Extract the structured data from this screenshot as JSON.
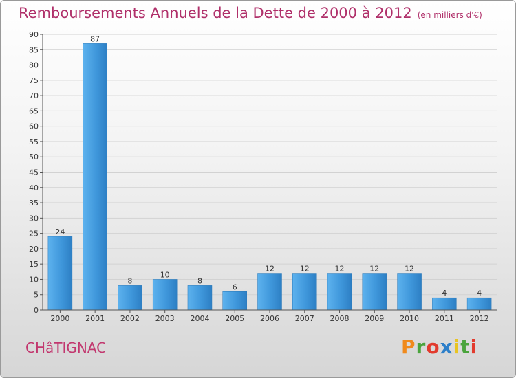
{
  "chart_data": {
    "type": "bar",
    "title": "Remboursements Annuels de la Dette de 2000 à 2012",
    "unit_note": "(en milliers d'€)",
    "categories": [
      "2000",
      "2001",
      "2002",
      "2003",
      "2004",
      "2005",
      "2006",
      "2007",
      "2008",
      "2009",
      "2010",
      "2011",
      "2012"
    ],
    "values": [
      24,
      87,
      8,
      10,
      8,
      6,
      12,
      12,
      12,
      12,
      12,
      4,
      4
    ],
    "ylim": [
      0,
      90
    ],
    "yticks": [
      0,
      5,
      10,
      15,
      20,
      25,
      30,
      35,
      40,
      45,
      50,
      55,
      60,
      65,
      70,
      75,
      80,
      85,
      90
    ],
    "grid": true,
    "bar_color": "#3f97db"
  },
  "footer": {
    "commune": "CHâTIGNAC",
    "brand": [
      "P",
      "r",
      "o",
      "x",
      "i",
      "t",
      "i"
    ],
    "brand_colors": [
      "#f08a1c",
      "#4aa43c",
      "#e23b2e",
      "#2d7fc9",
      "#e8c422",
      "#4aa43c",
      "#e23b2e"
    ]
  }
}
